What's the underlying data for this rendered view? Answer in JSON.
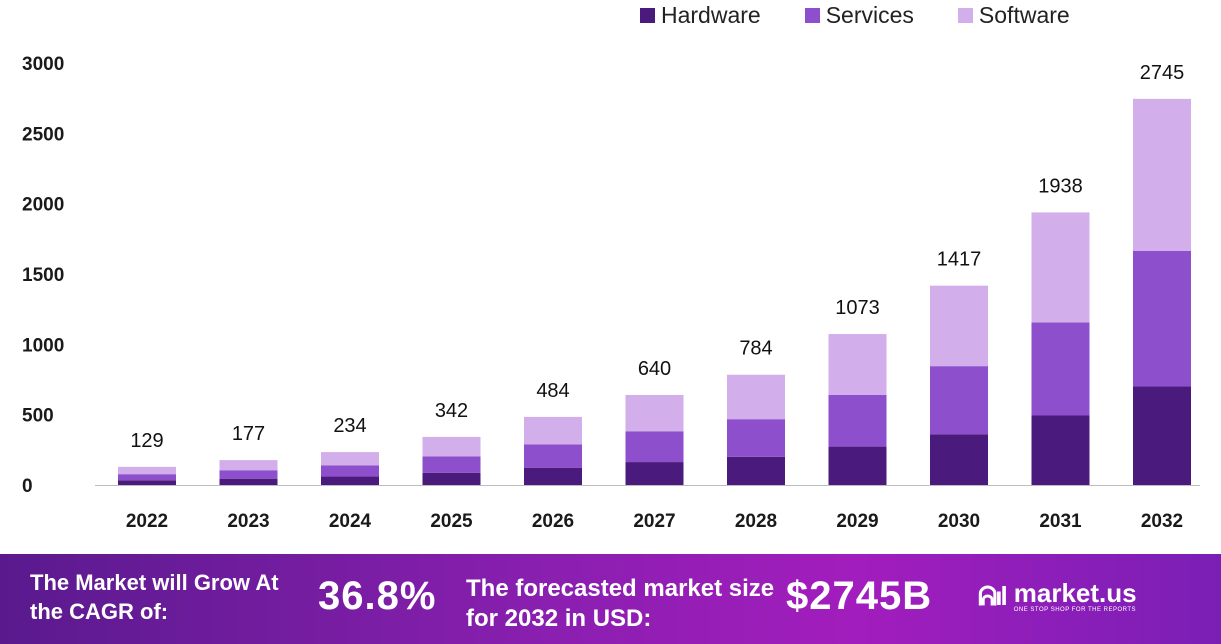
{
  "chart_data": {
    "type": "bar",
    "stacked": true,
    "categories": [
      "2022",
      "2023",
      "2024",
      "2025",
      "2026",
      "2027",
      "2028",
      "2029",
      "2030",
      "2031",
      "2032"
    ],
    "series": [
      {
        "name": "Hardware",
        "color": "#4a1b7c",
        "values": [
          33,
          45,
          60,
          87,
          123,
          163,
          200,
          273,
          361,
          494,
          700
        ]
      },
      {
        "name": "Services",
        "color": "#8d4fcb",
        "values": [
          44,
          60,
          80,
          117,
          166,
          219,
          268,
          367,
          484,
          662,
          965
        ]
      },
      {
        "name": "Software",
        "color": "#d2aeea",
        "values": [
          52,
          72,
          94,
          138,
          195,
          258,
          316,
          433,
          572,
          782,
          1080
        ]
      }
    ],
    "totals": [
      129,
      177,
      234,
      342,
      484,
      640,
      784,
      1073,
      1417,
      1938,
      2745
    ],
    "yticks": [
      0,
      500,
      1000,
      1500,
      2000,
      2500,
      3000
    ],
    "ylim": [
      0,
      3000
    ],
    "grid": false,
    "legend_position": "top-right"
  },
  "banner": {
    "cagr_text": "The Market will Grow At the CAGR of:",
    "cagr_value": "36.8%",
    "forecast_text": "The forecasted market size for 2032 in USD:",
    "forecast_value": "$2745B",
    "logo_mark_icon": "market-us-logo-icon",
    "logo_name": "market.us",
    "logo_tagline": "ONE STOP SHOP FOR THE REPORTS"
  }
}
